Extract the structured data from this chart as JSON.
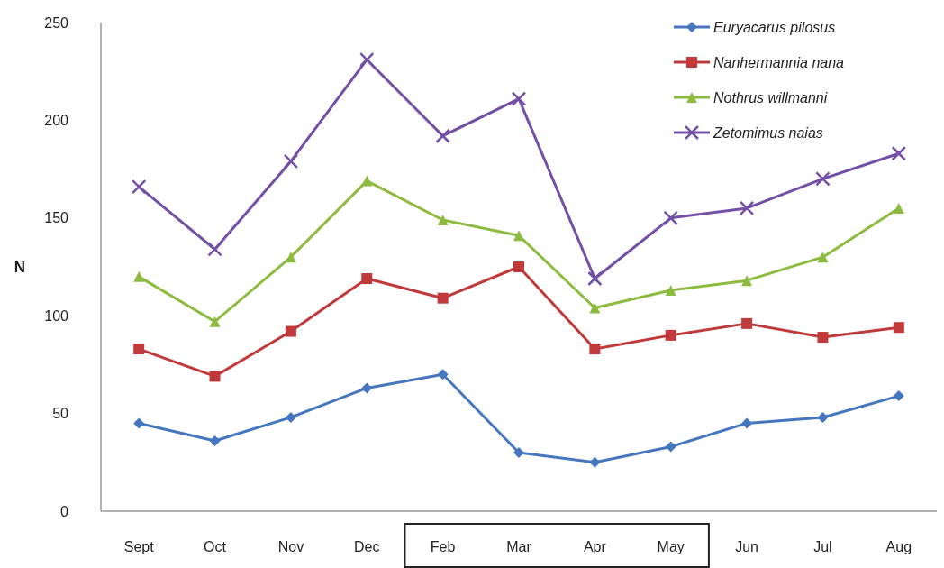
{
  "chart_data": {
    "type": "line",
    "ylabel": "N",
    "categories": [
      "Sept",
      "Oct",
      "Nov",
      "Dec",
      "Feb",
      "Mar",
      "Apr",
      "May",
      "Jun",
      "Jul",
      "Aug"
    ],
    "series": [
      {
        "name": "Euryacarus pilosus",
        "color": "#4677be",
        "marker": "diamond",
        "values": [
          45,
          36,
          48,
          63,
          70,
          30,
          25,
          33,
          45,
          48,
          59
        ]
      },
      {
        "name": "Nanhermannia nana",
        "color": "#c0393b",
        "marker": "square",
        "values": [
          83,
          69,
          92,
          119,
          109,
          125,
          83,
          90,
          96,
          89,
          94
        ]
      },
      {
        "name": "Nothrus willmanni",
        "color": "#8cbb3f",
        "marker": "triangle",
        "values": [
          120,
          97,
          130,
          169,
          149,
          141,
          104,
          113,
          118,
          130,
          155
        ]
      },
      {
        "name": "Zetomimus naias",
        "color": "#7350a5",
        "marker": "cross",
        "values": [
          166,
          134,
          179,
          231,
          192,
          211,
          119,
          150,
          155,
          170,
          183
        ]
      }
    ],
    "ylim": [
      0,
      250
    ],
    "yticks": [
      0,
      50,
      100,
      150,
      200,
      250
    ],
    "grid": false,
    "legend": "top right"
  }
}
